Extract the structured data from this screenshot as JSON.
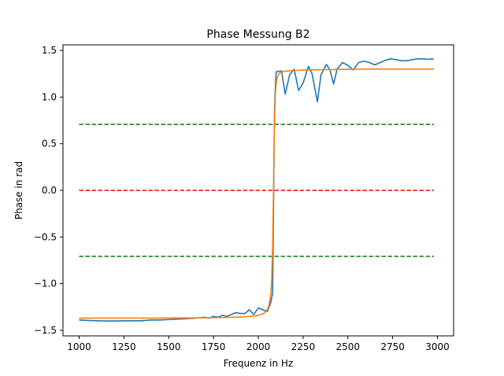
{
  "chart_data": {
    "type": "line",
    "title": "Phase Messung B2",
    "xlabel": "Frequenz in Hz",
    "ylabel": "Phase in rad",
    "xlim": [
      910,
      3090
    ],
    "ylim": [
      -1.56,
      1.56
    ],
    "xticks": [
      1000,
      1250,
      1500,
      1750,
      2000,
      2250,
      2500,
      2750,
      3000
    ],
    "yticks": [
      -1.5,
      -1.0,
      -0.5,
      0.0,
      0.5,
      1.0,
      1.5
    ],
    "grid": false,
    "series": [
      {
        "color": "#1f77b4",
        "x": [
          1000,
          1050,
          1100,
          1150,
          1200,
          1250,
          1300,
          1350,
          1400,
          1450,
          1500,
          1550,
          1600,
          1650,
          1700,
          1725,
          1750,
          1775,
          1800,
          1825,
          1850,
          1875,
          1900,
          1925,
          1950,
          1975,
          2000,
          2025,
          2050,
          2070,
          2080,
          2085,
          2090,
          2095,
          2100,
          2110,
          2130,
          2150,
          2175,
          2200,
          2225,
          2250,
          2280,
          2300,
          2330,
          2350,
          2380,
          2400,
          2420,
          2440,
          2470,
          2500,
          2530,
          2560,
          2590,
          2620,
          2650,
          2680,
          2710,
          2740,
          2770,
          2800,
          2830,
          2860,
          2890,
          2920,
          2950,
          2980
        ],
        "y": [
          -1.39,
          -1.395,
          -1.398,
          -1.4,
          -1.4,
          -1.398,
          -1.398,
          -1.398,
          -1.39,
          -1.39,
          -1.385,
          -1.38,
          -1.375,
          -1.37,
          -1.36,
          -1.37,
          -1.35,
          -1.36,
          -1.34,
          -1.35,
          -1.33,
          -1.31,
          -1.32,
          -1.32,
          -1.28,
          -1.33,
          -1.26,
          -1.28,
          -1.3,
          -1.2,
          -1.1,
          -0.2,
          0.8,
          1.1,
          1.27,
          1.275,
          1.28,
          1.03,
          1.24,
          1.3,
          1.07,
          1.15,
          1.33,
          1.25,
          0.95,
          1.24,
          1.35,
          1.29,
          1.14,
          1.3,
          1.37,
          1.34,
          1.29,
          1.37,
          1.385,
          1.37,
          1.345,
          1.37,
          1.395,
          1.41,
          1.4,
          1.39,
          1.39,
          1.4,
          1.41,
          1.41,
          1.405,
          1.41
        ]
      },
      {
        "color": "#ff7f0e",
        "x": [
          1000,
          1200,
          1400,
          1600,
          1700,
          1800,
          1900,
          1950,
          2000,
          2030,
          2050,
          2060,
          2070,
          2075,
          2080,
          2084,
          2088,
          2092,
          2096,
          2100,
          2105,
          2110,
          2120,
          2140,
          2160,
          2200,
          2250,
          2300,
          2400,
          2500,
          2600,
          2800,
          2980
        ],
        "y": [
          -1.37,
          -1.37,
          -1.37,
          -1.368,
          -1.366,
          -1.364,
          -1.358,
          -1.352,
          -1.34,
          -1.32,
          -1.28,
          -1.23,
          -1.11,
          -0.95,
          -0.6,
          -0.1,
          0.45,
          0.85,
          1.05,
          1.15,
          1.2,
          1.23,
          1.26,
          1.275,
          1.28,
          1.285,
          1.29,
          1.292,
          1.295,
          1.298,
          1.3,
          1.3,
          1.3
        ]
      }
    ],
    "reference_lines": [
      {
        "y": 0.707,
        "color": "#008000",
        "style": "dashed",
        "x_range": [
          1000,
          2980
        ]
      },
      {
        "y": 0.0,
        "color": "#ff0000",
        "style": "dashed",
        "x_range": [
          1000,
          2980
        ]
      },
      {
        "y": -0.707,
        "color": "#008000",
        "style": "dashed",
        "x_range": [
          1000,
          2980
        ]
      }
    ]
  }
}
